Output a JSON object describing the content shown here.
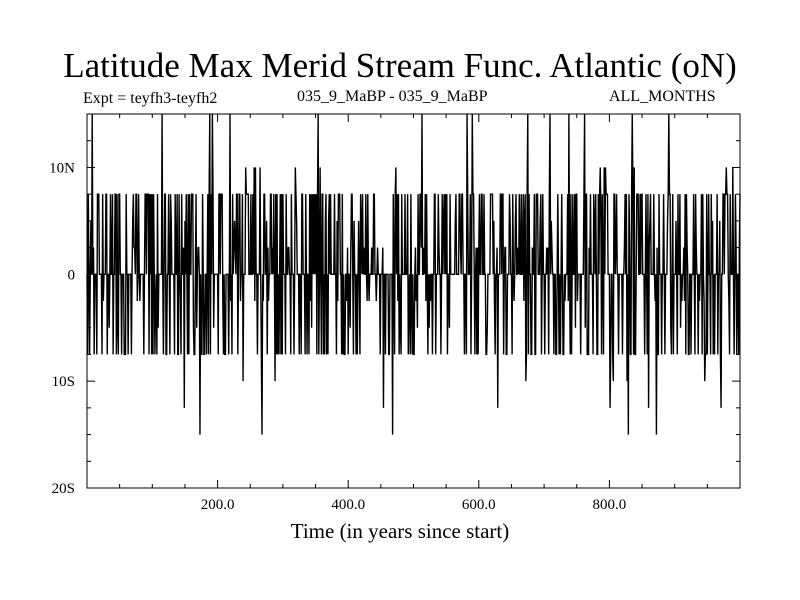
{
  "page": {
    "title": "Latitude Max Merid Stream Func. Atlantic (oN)",
    "expt_label": "Expt = teyfh3-teyfh2",
    "runs_label": "035_9_MaBP - 035_9_MaBP",
    "months_label": "ALL_MONTHS"
  },
  "chart_data": {
    "type": "line",
    "title": "Latitude Max Merid Stream Func. Atlantic (oN)",
    "xlabel": "Time (in years since start)",
    "ylabel": "",
    "xlim": [
      0,
      1000
    ],
    "ylim": [
      -20,
      15
    ],
    "xticks": [
      {
        "value": 200,
        "label": "200.0"
      },
      {
        "value": 400,
        "label": "400.0"
      },
      {
        "value": 600,
        "label": "600.0"
      },
      {
        "value": 800,
        "label": "800.0"
      }
    ],
    "yticks": [
      {
        "value": 10,
        "label": "10N"
      },
      {
        "value": 0,
        "label": "0"
      },
      {
        "value": -10,
        "label": "10S"
      },
      {
        "value": -20,
        "label": "20S"
      }
    ],
    "levels": [
      -17.5,
      -15,
      -12.5,
      -10,
      -7.5,
      -5,
      -2.5,
      0,
      2.5,
      5,
      7.5,
      10,
      12.5,
      15
    ],
    "series": [
      {
        "name": "teyfh3-teyfh2",
        "x": [
          0,
          1000
        ],
        "sampling": "yearly",
        "typical_range": [
          -7.5,
          7.5
        ],
        "min": -17.5,
        "max": 15
      }
    ],
    "grid": false
  }
}
